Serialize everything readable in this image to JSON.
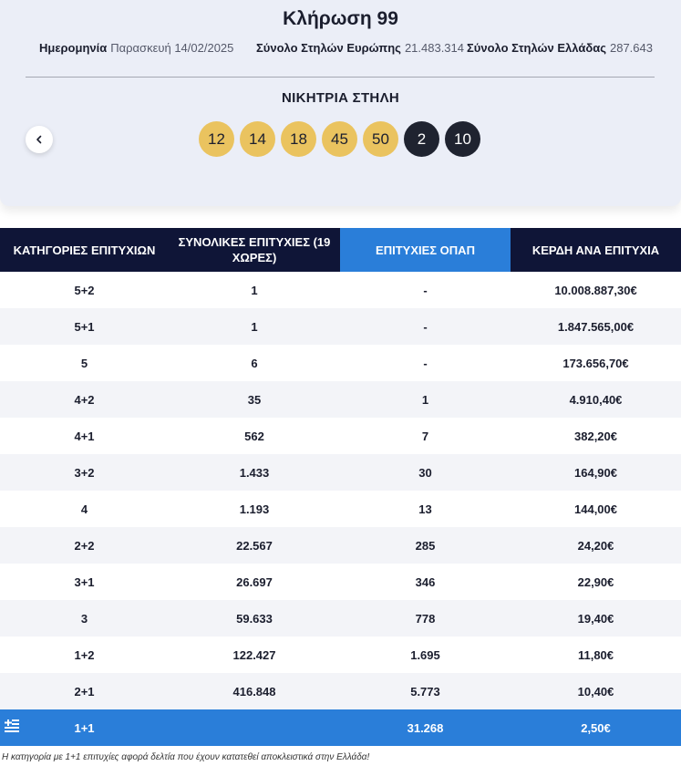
{
  "header": {
    "title": "Κλήρωση 99",
    "date_label": "Ημερομηνία",
    "date_value": "Παρασκευή 14/02/2025",
    "europe_label": "Σύνολο Στηλών Ευρώπης",
    "europe_value": "21.483.314",
    "greece_label": "Σύνολο Στηλών Ελλάδας",
    "greece_value": "287.643",
    "winning_label": "ΝΙΚΗΤΡΙΑ ΣΤΗΛΗ",
    "prev_icon": "chevron-left-icon"
  },
  "balls": {
    "numbers": [
      "12",
      "14",
      "18",
      "45",
      "50"
    ],
    "stars": [
      "2",
      "10"
    ],
    "colors": {
      "number": "#eac35f",
      "star": "#1f2330"
    }
  },
  "table": {
    "headers": [
      "ΚΑΤΗΓΟΡΙΕΣ ΕΠΙΤΥΧΙΩΝ",
      "ΣΥΝΟΛΙΚΕΣ ΕΠΙΤΥΧΙΕΣ (19 ΧΩΡΕΣ)",
      "ΕΠΙΤΥΧΙΕΣ ΟΠΑΠ",
      "ΚΕΡΔΗ ΑΝΑ ΕΠΙΤΥΧΙΑ"
    ],
    "rows": [
      [
        "5+2",
        "1",
        "-",
        "10.008.887,30€"
      ],
      [
        "5+1",
        "1",
        "-",
        "1.847.565,00€"
      ],
      [
        "5",
        "6",
        "-",
        "173.656,70€"
      ],
      [
        "4+2",
        "35",
        "1",
        "4.910,40€"
      ],
      [
        "4+1",
        "562",
        "7",
        "382,20€"
      ],
      [
        "3+2",
        "1.433",
        "30",
        "164,90€"
      ],
      [
        "4",
        "1.193",
        "13",
        "144,00€"
      ],
      [
        "2+2",
        "22.567",
        "285",
        "24,20€"
      ],
      [
        "3+1",
        "26.697",
        "346",
        "22,90€"
      ],
      [
        "3",
        "59.633",
        "778",
        "19,40€"
      ],
      [
        "1+2",
        "122.427",
        "1.695",
        "11,80€"
      ],
      [
        "2+1",
        "416.848",
        "5.773",
        "10,40€"
      ]
    ],
    "highlight_row": {
      "category": "1+1",
      "total": "",
      "opap": "31.268",
      "prize": "2,50€",
      "icon": "greek-flag-icon"
    },
    "colors": {
      "dark_header": "#0f1537",
      "blue": "#2a7ed9"
    }
  },
  "footnote": "Η κατηγορία με 1+1 επιτυχίες αφορά δελτία που έχουν κατατεθεί αποκλειστικά στην Ελλάδα!"
}
